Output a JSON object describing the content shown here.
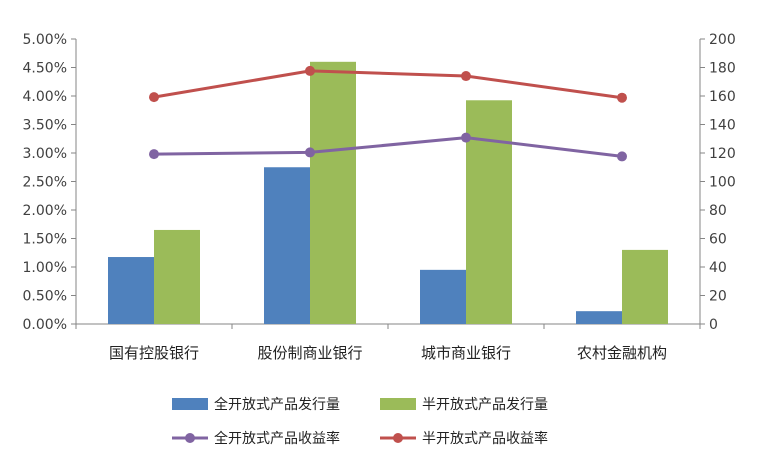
{
  "chart_data": {
    "type": "bar",
    "categories": [
      "国有控股银行",
      "股份制商业银行",
      "城市商业银行",
      "农村金融机构"
    ],
    "series": [
      {
        "name": "全开放式产品发行量",
        "type": "bar",
        "axis": "right",
        "color": "#4F81BD",
        "values": [
          47,
          110,
          38,
          9
        ]
      },
      {
        "name": "半开放式产品发行量",
        "type": "bar",
        "axis": "right",
        "color": "#9BBB59",
        "values": [
          66,
          184,
          157,
          52
        ]
      },
      {
        "name": "全开放式产品收益率",
        "type": "line",
        "axis": "left",
        "color": "#8064A2",
        "values": [
          2.98,
          3.01,
          3.27,
          2.94
        ]
      },
      {
        "name": "半开放式产品收益率",
        "type": "line",
        "axis": "left",
        "color": "#C0504D",
        "values": [
          3.98,
          4.44,
          4.35,
          3.97
        ]
      }
    ],
    "y_left": {
      "ylim": [
        0,
        5
      ],
      "step": 0.5,
      "tick_labels": [
        "0.00%",
        "0.50%",
        "1.00%",
        "1.50%",
        "2.00%",
        "2.50%",
        "3.00%",
        "3.50%",
        "4.00%",
        "4.50%",
        "5.00%"
      ]
    },
    "y_right": {
      "ylim": [
        0,
        200
      ],
      "step": 20,
      "tick_labels": [
        "0",
        "20",
        "40",
        "60",
        "80",
        "100",
        "120",
        "140",
        "160",
        "180",
        "200"
      ]
    },
    "legend": {
      "position": "bottom"
    },
    "grid": false
  }
}
